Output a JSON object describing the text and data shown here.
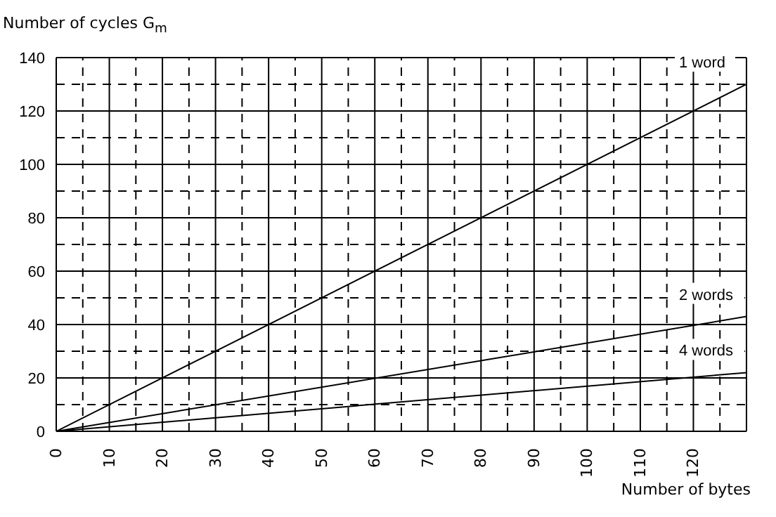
{
  "chart_data": {
    "type": "line",
    "xlabel": "Number of bytes",
    "ylabel": "Number of cycles G$_{m}$",
    "x": [
      0,
      130
    ],
    "series": [
      {
        "name": "1 word",
        "color": "#000000",
        "values": [
          0,
          130
        ]
      },
      {
        "name": "2 words",
        "color": "#000000",
        "values": [
          0,
          43
        ]
      },
      {
        "name": "4 words",
        "color": "#000000",
        "values": [
          0,
          22
        ]
      }
    ],
    "xlim": [
      0,
      130
    ],
    "ylim": [
      0,
      140
    ],
    "xticks": [
      0,
      {
        "value": 5,
        "label": null
      },
      10,
      {
        "value": 15,
        "label": null
      },
      20,
      {
        "value": 25,
        "label": null
      },
      30,
      {
        "value": 35,
        "label": null
      },
      40,
      {
        "value": 45,
        "label": null
      },
      50,
      {
        "value": 55,
        "label": null
      },
      60,
      {
        "value": 65,
        "label": null
      },
      70,
      {
        "value": 75,
        "label": null
      },
      80,
      {
        "value": 85,
        "label": null
      },
      90,
      {
        "value": 95,
        "label": null
      },
      100,
      {
        "value": 105,
        "label": null
      },
      110,
      {
        "value": 115,
        "label": null
      },
      120,
      {
        "value": 125,
        "label": null
      }
    ],
    "yticks": [
      0,
      {
        "value": 10,
        "label": null
      },
      20,
      {
        "value": 30,
        "label": null
      },
      40,
      {
        "value": 50,
        "label": null
      },
      60,
      {
        "value": 70,
        "label": null
      },
      80,
      {
        "value": 90,
        "label": null
      },
      100,
      {
        "value": 110,
        "label": null
      },
      120,
      {
        "value": 130,
        "label": null
      },
      140
    ],
    "grid": true,
    "legend": false,
    "marker": "none",
    "line_style": "solid"
  }
}
